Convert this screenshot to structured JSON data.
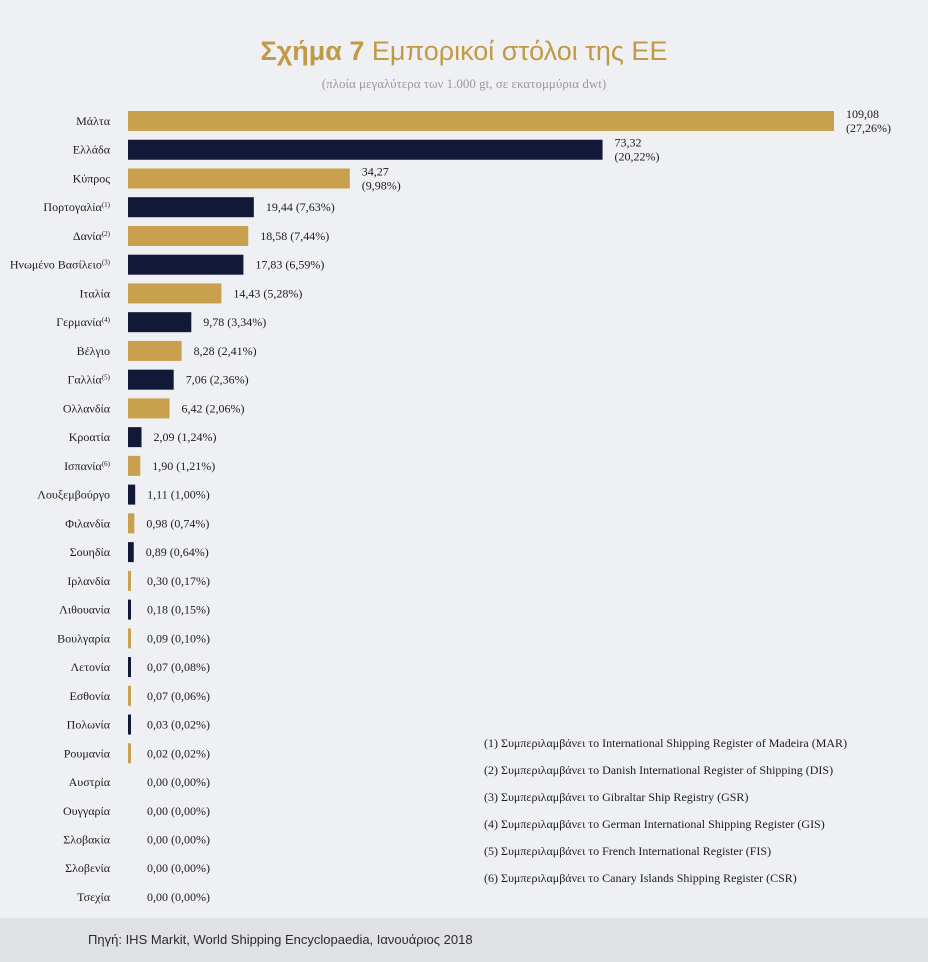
{
  "title": {
    "bold": "Σχήμα 7",
    "rest": " Εμπορικοί στόλοι της ΕΕ"
  },
  "subtitle": "(πλοία μεγαλύτερα των 1.000 gt, σε εκατομμύρια dwt)",
  "colors": {
    "gold": "#c9a04d",
    "navy": "#121838",
    "background": "#eff0f4",
    "title": "#c19a45"
  },
  "chart_data": {
    "type": "bar",
    "orientation": "horizontal",
    "categories": [
      "Μάλτα",
      "Ελλάδα",
      "Κύπρος",
      "Πορτογαλία",
      "Δανία",
      "Ηνωμένο Βασίλειο",
      "Ιταλία",
      "Γερμανία",
      "Βέλγιο",
      "Γαλλία",
      "Ολλανδία",
      "Κροατία",
      "Ισπανία",
      "Λουξεμβούργο",
      "Φιλανδία",
      "Σουηδία",
      "Ιρλανδία",
      "Λιθουανία",
      "Βουλγαρία",
      "Λετονία",
      "Εσθονία",
      "Πολωνία",
      "Ρουμανία",
      "Αυστρία",
      "Ουγγαρία",
      "Σλοβακία",
      "Σλοβενία",
      "Τσεχία"
    ],
    "footnote_marks": [
      "",
      "",
      "",
      "(1)",
      "(2)",
      "(3)",
      "",
      "(4)",
      "",
      "(5)",
      "",
      "",
      "(6)",
      "",
      "",
      "",
      "",
      "",
      "",
      "",
      "",
      "",
      "",
      "",
      "",
      "",
      "",
      ""
    ],
    "values": [
      109.08,
      73.32,
      34.27,
      19.44,
      18.58,
      17.83,
      14.43,
      9.78,
      8.28,
      7.06,
      6.42,
      2.09,
      1.9,
      1.11,
      0.98,
      0.89,
      0.3,
      0.18,
      0.09,
      0.07,
      0.07,
      0.03,
      0.02,
      0.0,
      0.0,
      0.0,
      0.0,
      0.0
    ],
    "value_labels": [
      "109,08",
      "73,32",
      "34,27",
      "19,44",
      "18,58",
      "17,83",
      "14,43",
      "9,78",
      "8,28",
      "7,06",
      "6,42",
      "2,09",
      "1,90",
      "1,11",
      "0,98",
      "0,89",
      "0,30",
      "0,18",
      "0,09",
      "0,07",
      "0,07",
      "0,03",
      "0,02",
      "0,00",
      "0,00",
      "0,00",
      "0,00",
      "0,00"
    ],
    "share_labels": [
      "(27,26%)",
      "(20,22%)",
      "(9,98%)",
      "(7,63%)",
      "(7,44%)",
      "(6,59%)",
      "(5,28%)",
      "(3,34%)",
      "(2,41%)",
      "(2,36%)",
      "(2,06%)",
      "(1,24%)",
      "(1,21%)",
      "(1,00%)",
      "(0,74%)",
      "(0,64%)",
      "(0,17%)",
      "(0,15%)",
      "(0,10%)",
      "(0,08%)",
      "(0,06%)",
      "(0,02%)",
      "(0,02%)",
      "(0,00%)",
      "(0,00%)",
      "(0,00%)",
      "(0,00%)",
      "(0,00%)"
    ],
    "grid": false,
    "legend": "none",
    "bar_colors": "alternating gold / navy"
  },
  "footnotes": [
    "(1) Συμπεριλαμβάνει το International Shipping Register of Madeira (MAR)",
    "(2) Συμπεριλαμβάνει το Danish International Register of Shipping (DIS)",
    "(3) Συμπεριλαμβάνει το Gibraltar Ship Registry (GSR)",
    "(4) Συμπεριλαμβάνει το German International Shipping Register (GIS)",
    "(5) Συμπεριλαμβάνει το French International Register (FIS)",
    "(6) Συμπεριλαμβάνει το Canary Islands Shipping Register (CSR)"
  ],
  "source": "Πηγή: IHS Markit, World Shipping Encyclopaedia, Ιανουάριος 2018"
}
